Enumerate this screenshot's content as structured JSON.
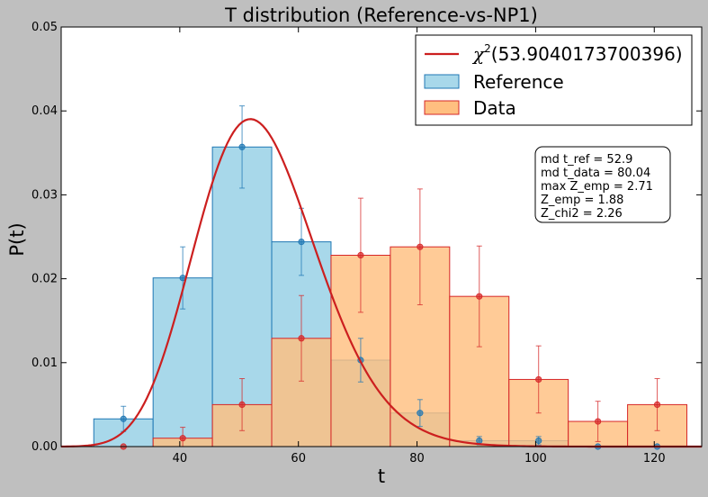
{
  "chart_data": {
    "type": "bar",
    "title": "T distribution (Reference-vs-NP1)",
    "xlabel": "t",
    "ylabel": "P(t)",
    "xlim": [
      20,
      128
    ],
    "ylim": [
      0,
      0.05
    ],
    "x_ticks": [
      40,
      60,
      80,
      100,
      120
    ],
    "y_ticks": [
      0.0,
      0.01,
      0.02,
      0.03,
      0.04,
      0.05
    ],
    "y_tick_labels": [
      "0.00",
      "0.01",
      "0.02",
      "0.03",
      "0.04",
      "0.05"
    ],
    "bin_edges": [
      25.5,
      35.5,
      45.5,
      55.5,
      65.5,
      75.5,
      85.5,
      95.5,
      105.5,
      115.5,
      125.5
    ],
    "series": [
      {
        "name": "Reference",
        "color": "#a8d8ea",
        "edge_color": "#1f77b4",
        "values": [
          0.0033,
          0.0201,
          0.0357,
          0.0244,
          0.0103,
          0.004,
          0.0007,
          0.0007,
          0.0,
          0.0
        ],
        "errors": [
          0.0015,
          0.0037,
          0.0049,
          0.004,
          0.0026,
          0.0016,
          0.0005,
          0.0005,
          0.0,
          0.0
        ]
      },
      {
        "name": "Data",
        "color": "#ffbf80",
        "edge_color": "#d62728",
        "values": [
          0.0,
          0.001,
          0.005,
          0.0129,
          0.0228,
          0.0238,
          0.0179,
          0.008,
          0.003,
          0.005
        ],
        "errors": [
          0.0,
          0.0013,
          0.0031,
          0.0051,
          0.0068,
          0.0069,
          0.006,
          0.004,
          0.0024,
          0.0031
        ]
      }
    ],
    "curve": {
      "name": "χ²(53.9040173700396)",
      "label_prefix": "χ",
      "label_sup": "2",
      "label_arg": "(53.9040173700396)",
      "dof": 53.9040173700396,
      "color": "#cc1f1f"
    },
    "legend_position": "top-right",
    "annotation_lines": [
      "md t_ref = 52.9",
      "md t_data = 80.04",
      "max Z_emp = 2.71",
      "Z_emp = 1.88",
      "Z_chi2 = 2.26"
    ]
  }
}
